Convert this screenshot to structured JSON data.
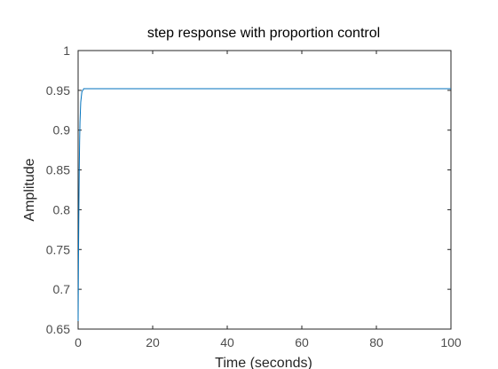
{
  "chart_data": {
    "type": "line",
    "title": "step response with proportion control",
    "xlabel": "Time (seconds)",
    "ylabel": "Amplitude",
    "xlim": [
      0,
      100
    ],
    "ylim": [
      0.65,
      1
    ],
    "x_ticks": [
      "0",
      "20",
      "40",
      "60",
      "80",
      "100"
    ],
    "y_ticks": [
      "0.65",
      "0.7",
      "0.75",
      "0.8",
      "0.85",
      "0.9",
      "0.95",
      "1"
    ],
    "grid": false,
    "series": [
      {
        "x": [
          0,
          0.1,
          0.2,
          0.3,
          0.4,
          0.5,
          0.7,
          1.0,
          1.5,
          2,
          100
        ],
        "y": [
          0.66,
          0.74,
          0.8,
          0.85,
          0.885,
          0.91,
          0.935,
          0.948,
          0.952,
          0.952,
          0.952
        ]
      }
    ],
    "colors": {
      "line": "#0072bd",
      "axes": "#262626",
      "text": "#4d4d4d"
    }
  }
}
